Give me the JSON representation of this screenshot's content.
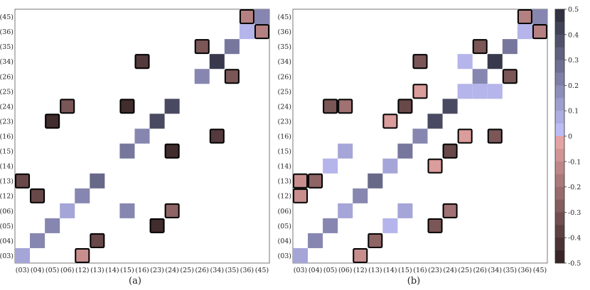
{
  "chart_data": {
    "type": "heatmap",
    "labels": [
      "(03)",
      "(04)",
      "(05)",
      "(06)",
      "(12)",
      "(13)",
      "(14)",
      "(15)",
      "(16)",
      "(23)",
      "(24)",
      "(25)",
      "(26)",
      "(34)",
      "(35)",
      "(36)",
      "(45)"
    ],
    "panels": [
      {
        "caption": "(a)",
        "cells": [
          [
            "(03)",
            "(03)",
            0.1
          ],
          [
            "(04)",
            "(04)",
            0.2
          ],
          [
            "(05)",
            "(05)",
            0.2
          ],
          [
            "(06)",
            "(06)",
            0.1
          ],
          [
            "(12)",
            "(03)",
            -0.1
          ],
          [
            "(12)",
            "(12)",
            0.2
          ],
          [
            "(13)",
            "(13)",
            0.3
          ],
          [
            "(13)",
            "(04)",
            -0.35
          ],
          [
            "(15)",
            "(06)",
            0.2
          ],
          [
            "(15)",
            "(15)",
            0.25
          ],
          [
            "(16)",
            "(16)",
            0.2
          ],
          [
            "(23)",
            "(23)",
            0.4
          ],
          [
            "(24)",
            "(24)",
            0.4
          ],
          [
            "(24)",
            "(06)",
            -0.25
          ],
          [
            "(23)",
            "(05)",
            -0.45
          ],
          [
            "(03)",
            "(13)",
            -0.35
          ],
          [
            "(04)",
            "(12)",
            -0.35
          ],
          [
            "(06)",
            "(24)",
            -0.3
          ],
          [
            "(05)",
            "(23)",
            -0.45
          ],
          [
            "(15)",
            "(24)",
            -0.45
          ],
          [
            "(16)",
            "(34)",
            -0.4
          ],
          [
            "(24)",
            "(15)",
            -0.45
          ],
          [
            "(26)",
            "(26)",
            0.2
          ],
          [
            "(26)",
            "(35)",
            -0.3
          ],
          [
            "(34)",
            "(16)",
            -0.4
          ],
          [
            "(34)",
            "(34)",
            0.45
          ],
          [
            "(35)",
            "(26)",
            -0.3
          ],
          [
            "(35)",
            "(35)",
            0.25
          ],
          [
            "(36)",
            "(36)",
            0.05
          ],
          [
            "(36)",
            "(45)",
            -0.15
          ],
          [
            "(45)",
            "(36)",
            -0.15
          ],
          [
            "(45)",
            "(45)",
            0.2
          ]
        ]
      },
      {
        "caption": "(b)",
        "cells": [
          [
            "(03)",
            "(03)",
            0.1
          ],
          [
            "(04)",
            "(04)",
            0.2
          ],
          [
            "(05)",
            "(05)",
            0.2
          ],
          [
            "(06)",
            "(06)",
            0.1
          ],
          [
            "(12)",
            "(03)",
            -0.1
          ],
          [
            "(12)",
            "(12)",
            0.2
          ],
          [
            "(13)",
            "(13)",
            0.3
          ],
          [
            "(13)",
            "(04)",
            -0.25
          ],
          [
            "(14)",
            "(05)",
            0.05
          ],
          [
            "(14)",
            "(14)",
            0.1
          ],
          [
            "(15)",
            "(06)",
            0.1
          ],
          [
            "(15)",
            "(15)",
            0.25
          ],
          [
            "(16)",
            "(16)",
            0.2
          ],
          [
            "(23)",
            "(23)",
            0.4
          ],
          [
            "(24)",
            "(24)",
            0.4
          ],
          [
            "(25)",
            "(25)",
            0.05
          ],
          [
            "(26)",
            "(26)",
            0.2
          ],
          [
            "(34)",
            "(34)",
            0.45
          ],
          [
            "(35)",
            "(35)",
            0.25
          ],
          [
            "(36)",
            "(36)",
            0.05
          ],
          [
            "(45)",
            "(45)",
            0.2
          ],
          [
            "(03)",
            "(12)",
            -0.1
          ],
          [
            "(04)",
            "(13)",
            -0.25
          ],
          [
            "(05)",
            "(14)",
            0.05
          ],
          [
            "(06)",
            "(15)",
            0.1
          ],
          [
            "(24)",
            "(06)",
            -0.2
          ],
          [
            "(23)",
            "(05)",
            -0.3
          ],
          [
            "(23)",
            "(14)",
            -0.05
          ],
          [
            "(03)",
            "(13)",
            -0.1
          ],
          [
            "(05)",
            "(24)",
            -0.3
          ],
          [
            "(06)",
            "(24)",
            -0.2
          ],
          [
            "(15)",
            "(24)",
            -0.35
          ],
          [
            "(16)",
            "(25)",
            -0.05
          ],
          [
            "(16)",
            "(34)",
            -0.3
          ],
          [
            "(24)",
            "(15)",
            -0.35
          ],
          [
            "(25)",
            "(16)",
            -0.05
          ],
          [
            "(25)",
            "(34)",
            0.05
          ],
          [
            "(14)",
            "(23)",
            -0.05
          ],
          [
            "(26)",
            "(35)",
            -0.3
          ],
          [
            "(26)",
            "(25)",
            0.05
          ],
          [
            "(34)",
            "(16)",
            -0.3
          ],
          [
            "(34)",
            "(25)",
            0.05
          ],
          [
            "(35)",
            "(26)",
            -0.3
          ],
          [
            "(36)",
            "(45)",
            -0.15
          ],
          [
            "(45)",
            "(36)",
            -0.15
          ]
        ]
      }
    ],
    "colorbar": {
      "range": [
        -0.5,
        0.5
      ],
      "ticks": [
        "0.5",
        "0.4",
        "0.3",
        "0.2",
        "0.1",
        "0",
        "-0.1",
        "-0.2",
        "-0.3",
        "-0.4",
        "-0.5"
      ],
      "negative_color": "#eeaaaa",
      "negative_end": "#2e1e20",
      "positive_color": "#c4c4ff",
      "positive_end": "#2a2a3a"
    },
    "negative_cells_outlined": true
  }
}
